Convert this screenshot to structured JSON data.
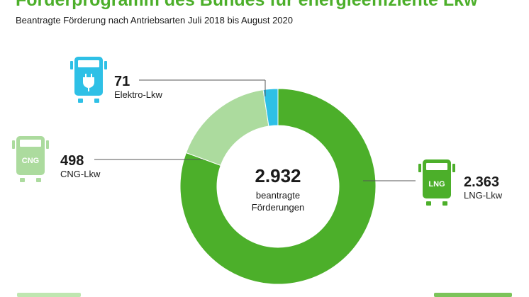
{
  "title": "Förderprogramm des Bundes für energieeffiziente Lkw",
  "subtitle": "Beantragte Förderung nach Antriebsarten Juli 2018 bis August 2020",
  "colors": {
    "lng": "#4caf2a",
    "cng": "#acdb9e",
    "elektro": "#2ec0e6",
    "title": "#4caf2a"
  },
  "chart_data": {
    "type": "pie",
    "variant": "donut",
    "total": {
      "value": "2.932",
      "label_line1": "beantragte",
      "label_line2": "Förderungen"
    },
    "slices": [
      {
        "key": "lng",
        "value": 2363,
        "value_label": "2.363",
        "label": "LNG-Lkw",
        "icon_text": "LNG"
      },
      {
        "key": "cng",
        "value": 498,
        "value_label": "498",
        "label": "CNG-Lkw",
        "icon_text": "CNG"
      },
      {
        "key": "elektro",
        "value": 71,
        "value_label": "71",
        "label": "Elektro-Lkw",
        "icon_text": ""
      }
    ]
  }
}
